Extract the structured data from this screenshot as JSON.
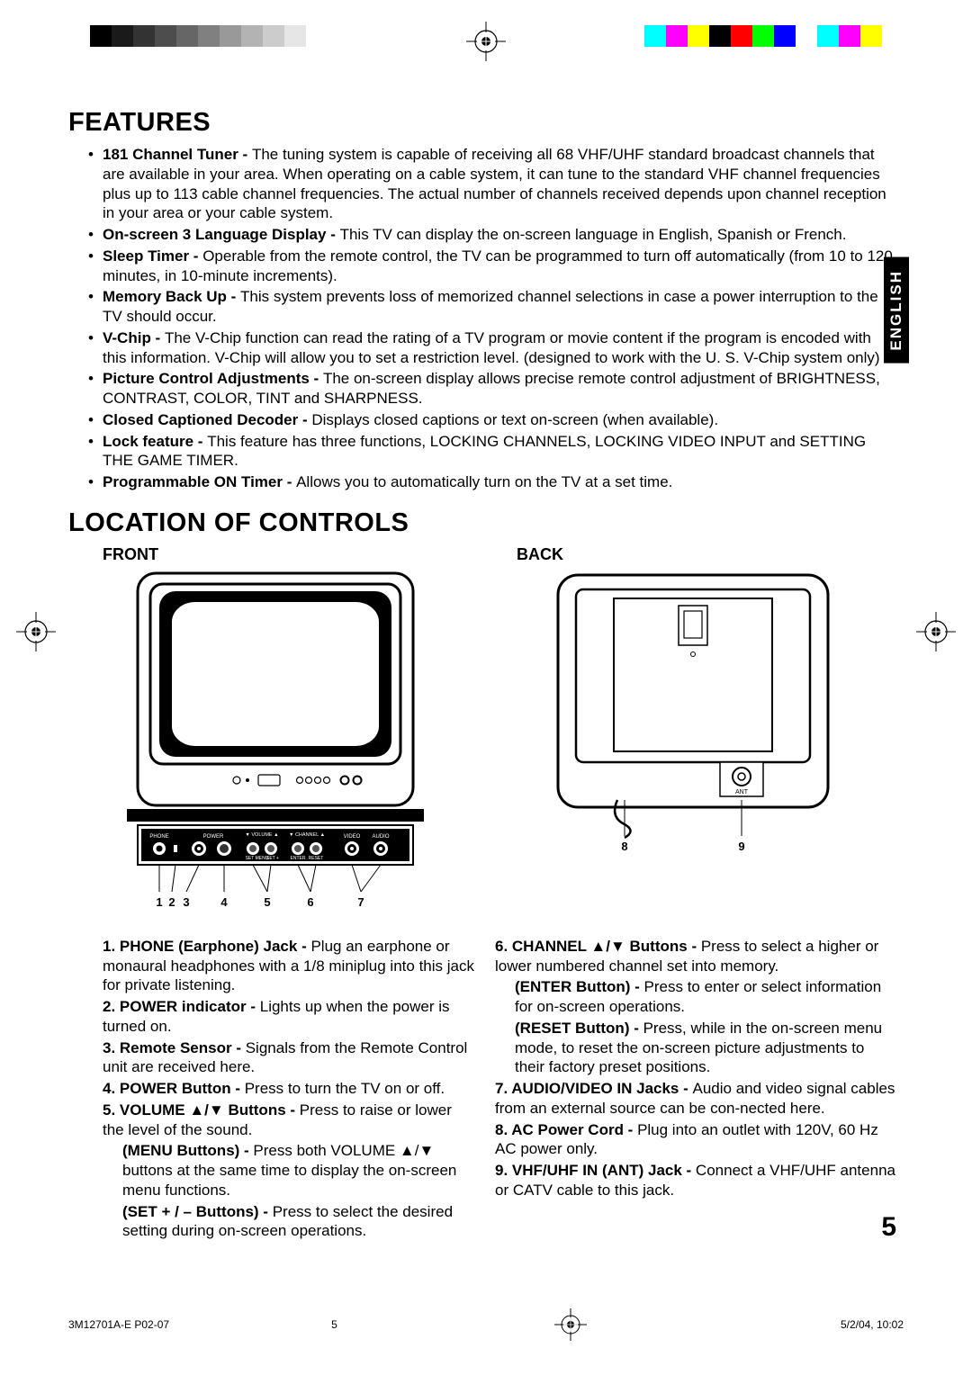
{
  "cropmarks": {
    "gray_shades": [
      "#000000",
      "#1a1a1a",
      "#333333",
      "#4d4d4d",
      "#666666",
      "#808080",
      "#999999",
      "#b3b3b3",
      "#cccccc",
      "#e6e6e6",
      "#ffffff"
    ],
    "color_swatches": [
      "#00ffff",
      "#ff00ff",
      "#ffff00",
      "#000000",
      "#ff0000",
      "#00ff00",
      "#0000ff",
      "#ffffff",
      "#00ffff",
      "#ff00ff",
      "#ffff00"
    ]
  },
  "lang_tab": "ENGLISH",
  "features": {
    "heading": "FEATURES",
    "items": [
      {
        "bold": "181 Channel Tuner - ",
        "text": "The tuning system is capable of receiving all 68 VHF/UHF standard broadcast channels that are available in your area. When operating on a cable system, it can tune to the standard VHF channel frequencies plus up to 113 cable channel frequencies. The actual number of channels received depends upon channel reception in your area or your cable system."
      },
      {
        "bold": "On-screen 3 Language Display - ",
        "text": "This TV can display the on-screen language in English, Spanish or French."
      },
      {
        "bold": "Sleep Timer - ",
        "text": "Operable from the remote control, the TV can be programmed to turn off automatically (from 10 to 120 minutes, in 10-minute increments)."
      },
      {
        "bold": "Memory Back Up - ",
        "text": "This system prevents loss of memorized channel selections in case a power interruption to the TV should occur."
      },
      {
        "bold": "V-Chip - ",
        "text": "The V-Chip function can read the rating of a TV program or movie content if the program is encoded with this information. V-Chip will allow you to set a restriction level. (designed to work with the U. S. V-Chip system only)"
      },
      {
        "bold": "Picture Control Adjustments - ",
        "text": "The on-screen display allows precise remote control adjustment of BRIGHTNESS, CONTRAST, COLOR, TINT and SHARPNESS."
      },
      {
        "bold": "Closed Captioned Decoder - ",
        "text": "Displays closed captions or text on-screen (when available)."
      },
      {
        "bold": "Lock feature - ",
        "text": "This feature has three functions, LOCKING CHANNELS, LOCKING VIDEO INPUT and SETTING THE GAME TIMER."
      },
      {
        "bold": "Programmable ON Timer - ",
        "text": "Allows you to automatically turn on the TV at a set time."
      }
    ]
  },
  "location": {
    "heading": "LOCATION OF CONTROLS",
    "front_label": "FRONT",
    "back_label": "BACK",
    "front_diagram": {
      "panel_labels": [
        "PHONE",
        "POWER",
        "VOLUME",
        "CHANNEL",
        "VIDEO",
        "AUDIO",
        "SET -",
        "MENU",
        "ENTER",
        "RESET",
        "SET +"
      ],
      "callouts": [
        "1",
        "2",
        "3",
        "4",
        "5",
        "6",
        "7"
      ]
    },
    "back_diagram": {
      "labels": [
        "ANT"
      ],
      "callouts": [
        "8",
        "9"
      ]
    },
    "left_col": [
      {
        "num": "1.",
        "bold": "PHONE (Earphone) Jack - ",
        "text": "Plug an earphone or monaural headphones with a 1/8 miniplug into this jack for private listening."
      },
      {
        "num": "2.",
        "bold": "POWER indicator - ",
        "text": "Lights up when the power is turned on."
      },
      {
        "num": "3.",
        "bold": "Remote Sensor - ",
        "text": "Signals from the Remote Control unit are received here."
      },
      {
        "num": "4.",
        "bold": "POWER Button - ",
        "text": "Press to turn the TV on or off."
      },
      {
        "num": "5.",
        "bold": "VOLUME ▲/▼ Buttons - ",
        "text": "Press to raise or lower the level of the sound."
      },
      {
        "num": "",
        "bold": "(MENU Buttons) - ",
        "text": "Press both VOLUME ▲/▼ buttons at the same time to display the on-screen menu functions.",
        "sub": true
      },
      {
        "num": "",
        "bold": "(SET + / – Buttons) - ",
        "text": "Press to select the desired setting during on-screen operations.",
        "sub": true
      }
    ],
    "right_col": [
      {
        "num": "6.",
        "bold": "CHANNEL ▲/▼ Buttons - ",
        "text": "Press to select a higher or lower numbered channel set into memory."
      },
      {
        "num": "",
        "bold": "ENTER Button) - ",
        "text": "Press to enter or select information for on-screen operations.",
        "sub": true,
        "prefix": "("
      },
      {
        "num": "",
        "bold": "RESET Button) - ",
        "text": "Press, while in the on-screen menu mode, to reset the on-screen picture adjustments to their factory preset positions.",
        "sub": true,
        "prefix": "("
      },
      {
        "num": "7.",
        "bold": "AUDIO/VIDEO IN Jacks - ",
        "text": "Audio and video signal cables from an external source can be con-nected here."
      },
      {
        "num": "8.",
        "bold": "AC Power Cord - ",
        "text": "Plug into an outlet with 120V, 60 Hz AC power only."
      },
      {
        "num": "9.",
        "bold": "VHF/UHF IN (ANT) Jack - ",
        "text": "Connect a VHF/UHF antenna or CATV cable to this jack."
      }
    ]
  },
  "page_number": "5",
  "footer": {
    "code": "3M12701A-E P02-07",
    "page": "5",
    "date": "5/2/04, 10:02"
  }
}
